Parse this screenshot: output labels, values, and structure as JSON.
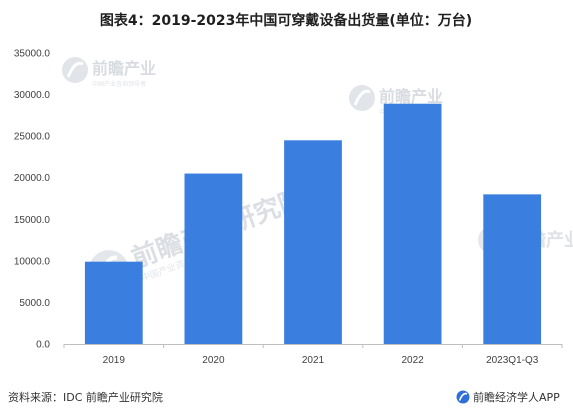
{
  "chart_data": {
    "type": "bar",
    "title": "图表4：2019-2023年中国可穿戴设备出货量(单位：万台)",
    "categories": [
      "2019",
      "2020",
      "2021",
      "2022",
      "2023Q1-Q3"
    ],
    "series": [
      {
        "values": [
          9900,
          20500,
          24500,
          28900,
          18000
        ]
      }
    ],
    "ylim": [
      0,
      35000
    ],
    "yticks": [
      "0.0",
      "5000.0",
      "10000.0",
      "15000.0",
      "20000.0",
      "25000.0",
      "30000.0",
      "35000.0"
    ],
    "grid": false,
    "legend": "none",
    "bar_color": "#3a7fdf"
  },
  "footer": {
    "source": "资料来源：IDC 前瞻产业研究院",
    "brand": "前瞻经济学人APP",
    "brand_icon": "qianzhan-logo-icon"
  },
  "watermark": {
    "text": "前瞻产业",
    "text_long": "前瞻产业研究院",
    "sub": "中国产业咨询领导者"
  }
}
